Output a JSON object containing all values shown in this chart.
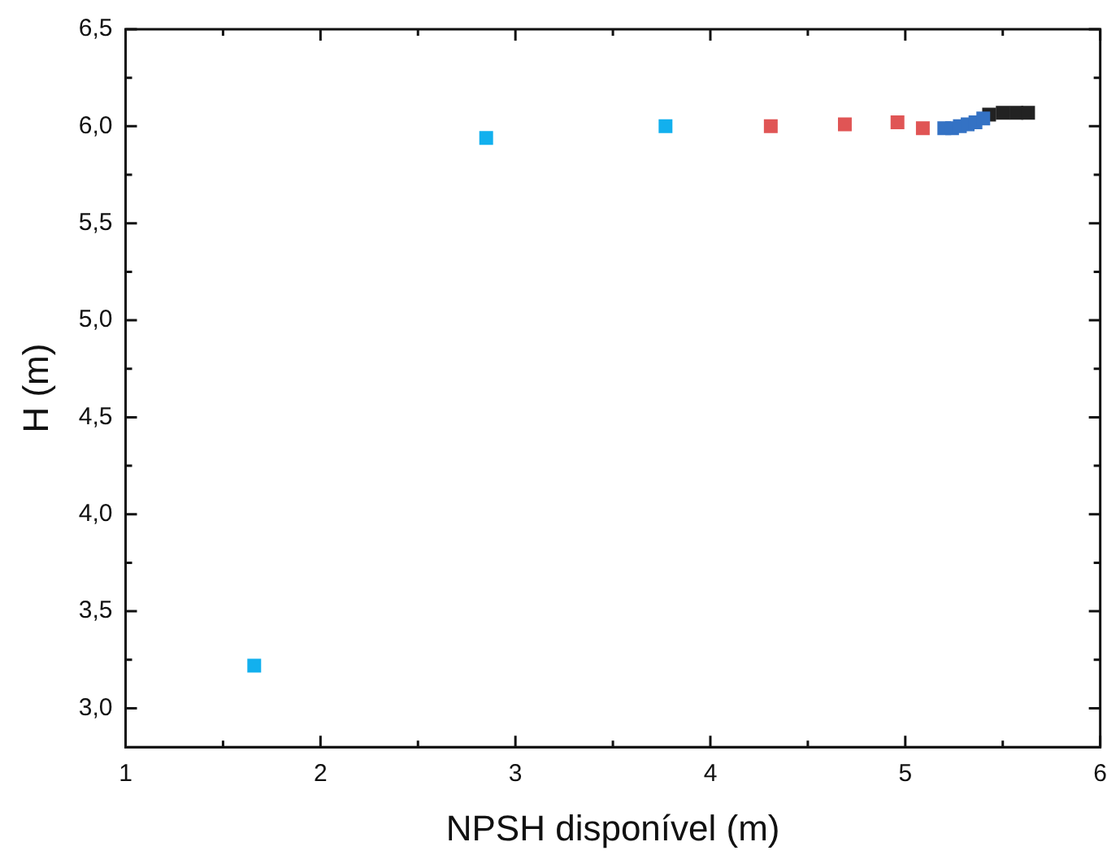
{
  "chart_data": {
    "type": "scatter",
    "xlabel": "NPSH disponível (m)",
    "ylabel": "H (m)",
    "marker": "square",
    "grid": false,
    "legend": false,
    "xlim": [
      1,
      6
    ],
    "ylim": [
      2.8,
      6.5
    ],
    "xticks": [
      1,
      {
        "value": 1.5,
        "label": null
      },
      2,
      {
        "value": 2.5,
        "label": null
      },
      3,
      {
        "value": 3.5,
        "label": null
      },
      4,
      {
        "value": 4.5,
        "label": null
      },
      5,
      {
        "value": 5.5,
        "label": null
      },
      6
    ],
    "yticks": [
      {
        "value": 3.0,
        "label": "3,0"
      },
      {
        "value": 3.25,
        "label": null
      },
      {
        "value": 3.5,
        "label": "3,5"
      },
      {
        "value": 3.75,
        "label": null
      },
      {
        "value": 4.0,
        "label": "4,0"
      },
      {
        "value": 4.25,
        "label": null
      },
      {
        "value": 4.5,
        "label": "4,5"
      },
      {
        "value": 4.75,
        "label": null
      },
      {
        "value": 5.0,
        "label": "5,0"
      },
      {
        "value": 5.25,
        "label": null
      },
      {
        "value": 5.5,
        "label": "5,5"
      },
      {
        "value": 5.75,
        "label": null
      },
      {
        "value": 6.0,
        "label": "6,0"
      },
      {
        "value": 6.25,
        "label": null
      },
      {
        "value": 6.5,
        "label": "6,5"
      }
    ],
    "series": [
      {
        "color": "#12b0ee",
        "x": [
          1.66,
          2.85,
          3.77
        ],
        "values": [
          3.22,
          5.94,
          6.0
        ]
      },
      {
        "color": "#e05555",
        "x": [
          4.31,
          4.69,
          4.96,
          5.09
        ],
        "values": [
          6.0,
          6.01,
          6.02,
          5.99
        ]
      },
      {
        "color": "#3472c4",
        "x": [
          5.2,
          5.24,
          5.28,
          5.32,
          5.36,
          5.4
        ],
        "values": [
          5.99,
          5.99,
          6.0,
          6.01,
          6.02,
          6.04
        ]
      },
      {
        "color": "#222222",
        "x": [
          5.43,
          5.5,
          5.57,
          5.63
        ],
        "values": [
          6.06,
          6.07,
          6.07,
          6.07
        ]
      }
    ]
  }
}
